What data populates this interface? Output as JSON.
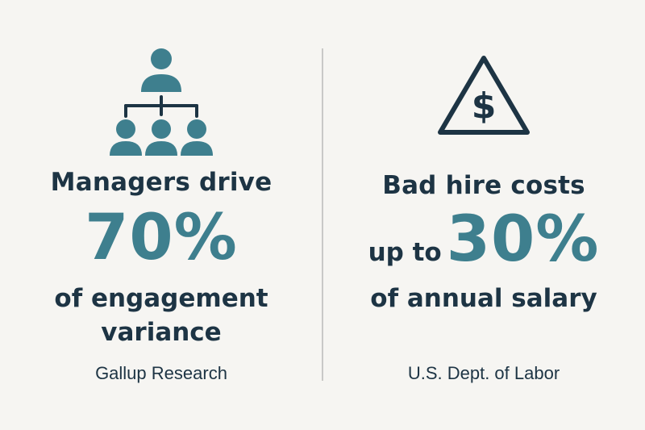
{
  "colors": {
    "background": "#f6f5f2",
    "text": "#1d3444",
    "accent": "#3e7f8e",
    "divider": "#c9c9c7"
  },
  "left": {
    "icon": "org-chart-icon",
    "headline": "Managers drive",
    "stat": "70%",
    "line1": "of engagement",
    "line2": "variance",
    "source": "Gallup Research"
  },
  "right": {
    "icon": "warning-dollar-icon",
    "headline": "Bad hire costs",
    "prefix": "up to",
    "stat": "30%",
    "line1": "of annual salary",
    "source": "U.S. Dept. of Labor"
  }
}
